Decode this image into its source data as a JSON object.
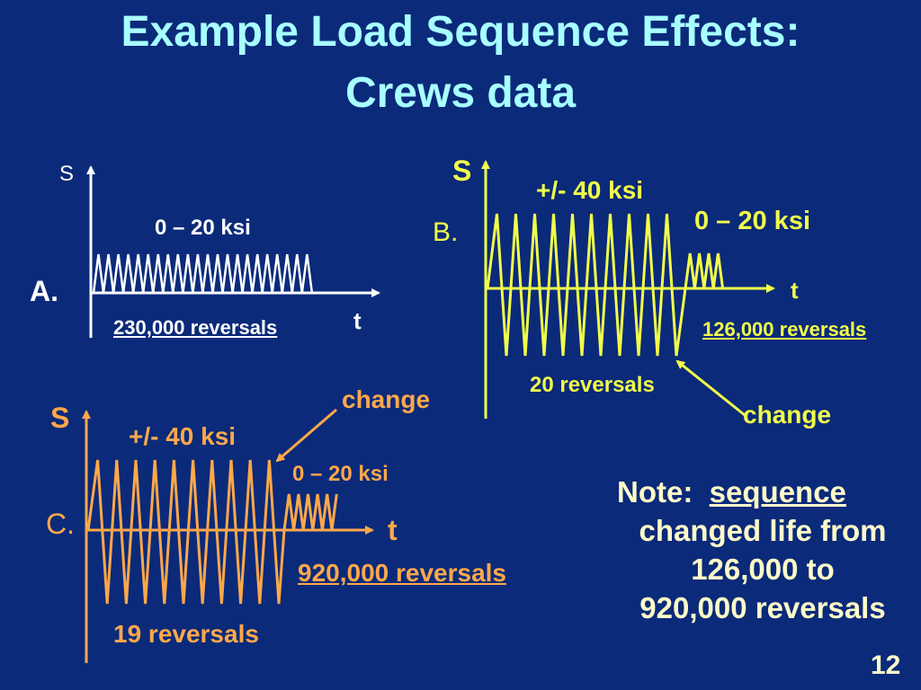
{
  "slide": {
    "title_line1": "Example Load Sequence Effects:",
    "title_line2": "Crews data",
    "page_number": "12"
  },
  "panel_a": {
    "label": "A.",
    "y_axis": "S",
    "x_axis": "t",
    "amplitude": "0 – 20 ksi",
    "life": "230,000 reversals"
  },
  "panel_b": {
    "label": "B.",
    "y_axis": "S",
    "x_axis": "t",
    "amplitude_high": "+/- 40 ksi",
    "amplitude_low": "0 – 20 ksi",
    "high_reversals": "20 reversals",
    "life": "126,000 reversals",
    "change_label": "change"
  },
  "panel_c": {
    "label": "C.",
    "y_axis": "S",
    "x_axis": "t",
    "amplitude_high": "+/- 40 ksi",
    "amplitude_low": "0 – 20 ksi",
    "high_reversals": "19 reversals",
    "life": "920,000 reversals",
    "change_label": "change"
  },
  "note": {
    "prefix": "Note:",
    "keyword": "sequence",
    "line2": "changed life from",
    "line3": "126,000 to",
    "line4": "920,000 reversals"
  },
  "colors": {
    "background": "#0b2a7a",
    "title": "#a8ffff",
    "panel_a": "#ffffff",
    "panel_b": "#f2ff4a",
    "panel_c": "#ffa84a",
    "note": "#fffbc8"
  }
}
